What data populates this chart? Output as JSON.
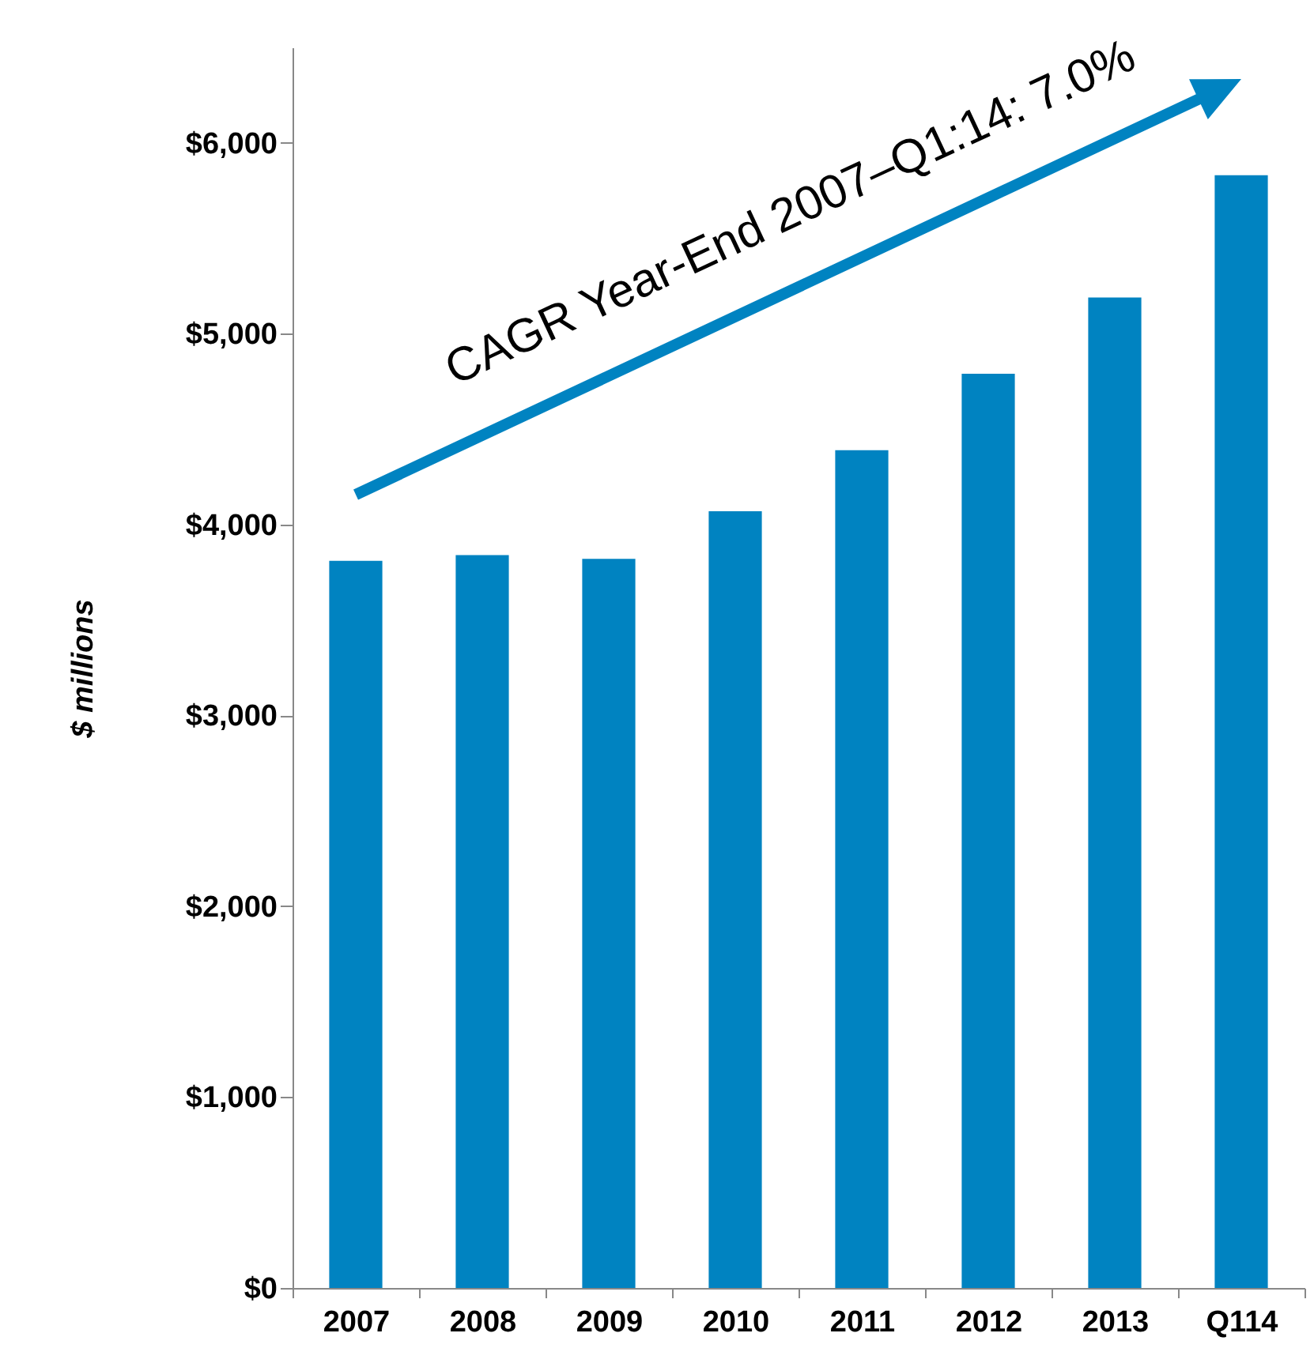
{
  "chart_data": {
    "type": "bar",
    "ylabel": "$ millions",
    "categories": [
      "2007",
      "2008",
      "2009",
      "2010",
      "2011",
      "2012",
      "2013",
      "Q114"
    ],
    "values": [
      3810,
      3840,
      3820,
      4070,
      4390,
      4790,
      5190,
      5830
    ],
    "color": "#0083c1",
    "ylim": [
      0,
      6500
    ],
    "yticks": [
      {
        "value": 0,
        "label": "$0"
      },
      {
        "value": 1000,
        "label": "$1,000"
      },
      {
        "value": 2000,
        "label": "$2,000"
      },
      {
        "value": 3000,
        "label": "$3,000"
      },
      {
        "value": 4000,
        "label": "$4,000"
      },
      {
        "value": 5000,
        "label": "$5,000"
      },
      {
        "value": 6000,
        "label": "$6,000"
      }
    ],
    "annotations": [
      "CAGR Year-End 2007–Q1:14: 7.0%"
    ]
  }
}
